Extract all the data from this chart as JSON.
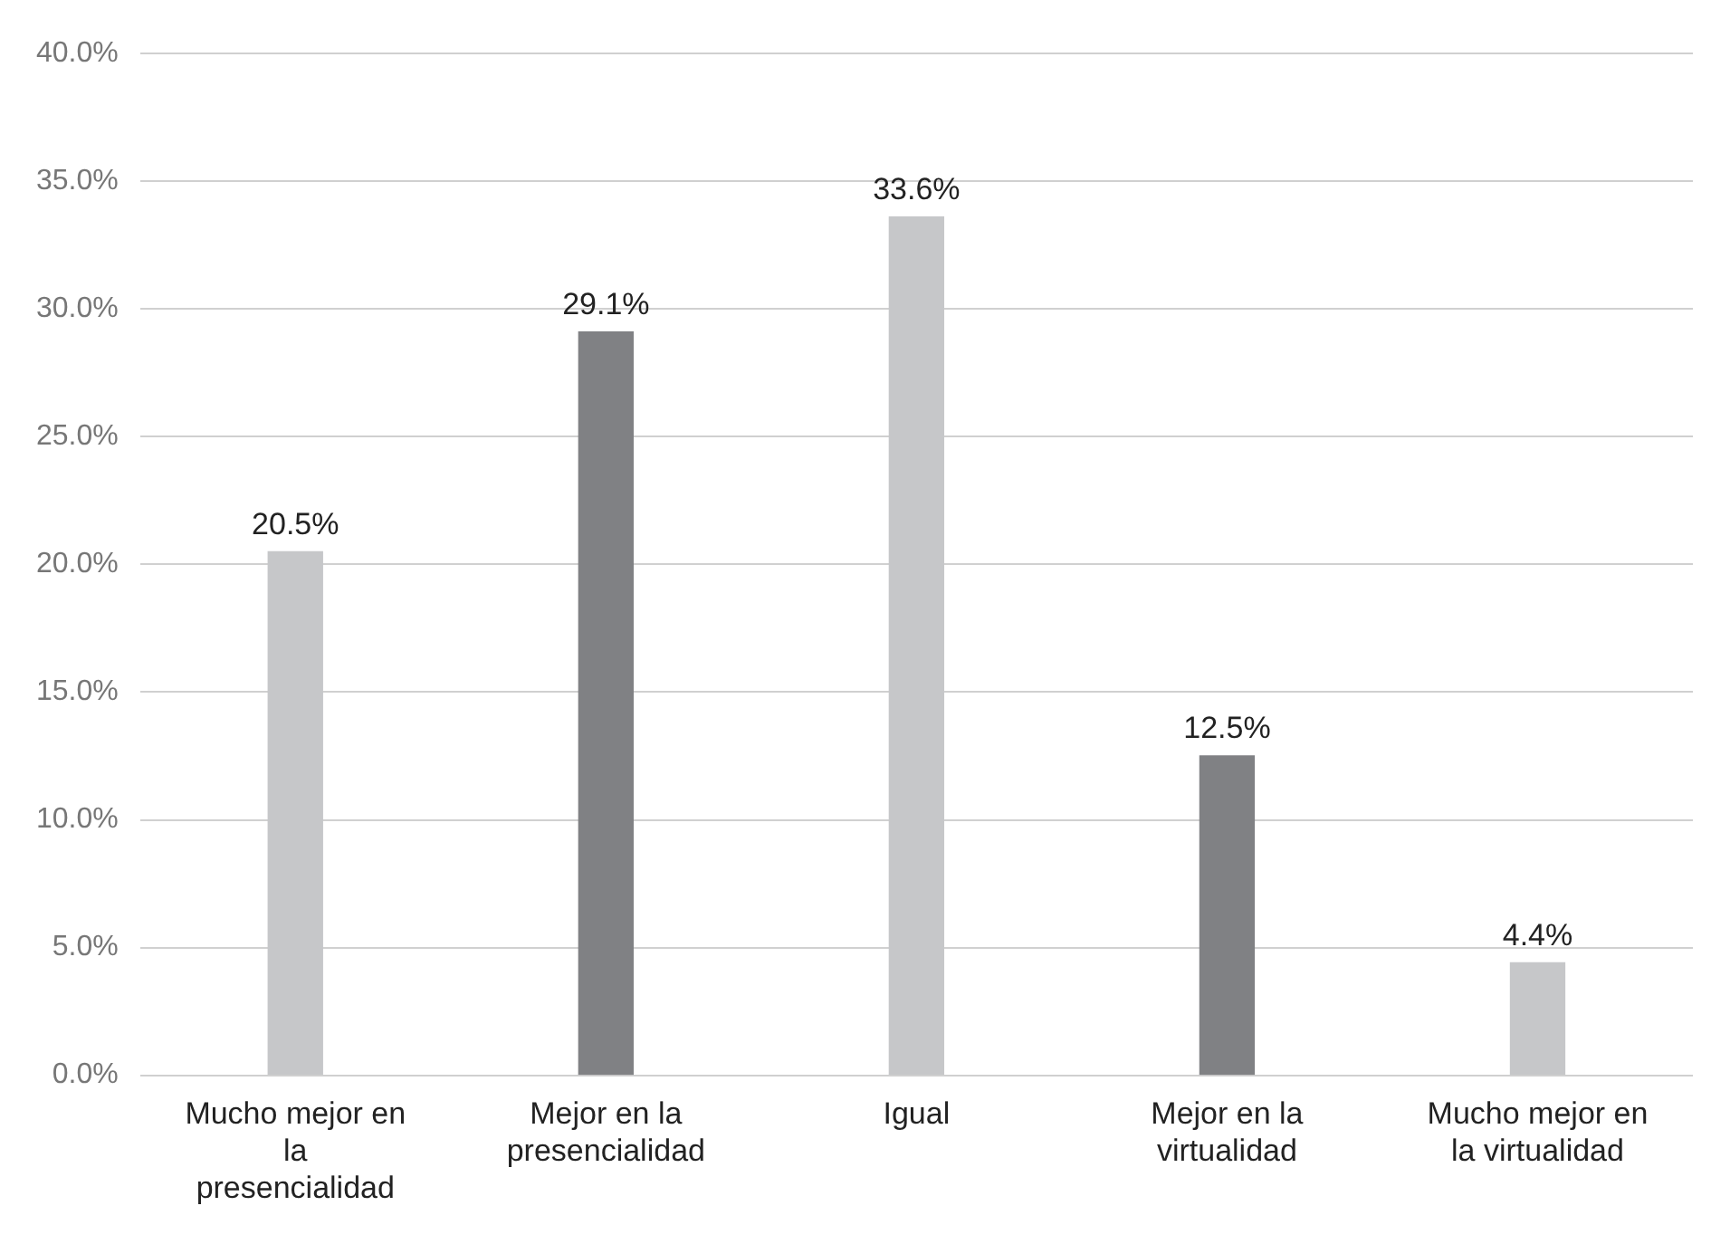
{
  "chart_data": {
    "type": "bar",
    "categories": [
      "Mucho mejor en la presencialidad",
      "Mejor en la presencialidad",
      "Igual",
      "Mejor en la virtualidad",
      "Mucho mejor en la virtualidad"
    ],
    "values": [
      20.5,
      29.1,
      33.6,
      12.5,
      4.4
    ],
    "colors": [
      "#c6c7c9",
      "#808184",
      "#c6c7c9",
      "#808184",
      "#c6c7c9"
    ],
    "ylim": [
      0,
      40
    ],
    "yticks": [
      {
        "value": 0,
        "label": "0.0%"
      },
      {
        "value": 5,
        "label": "5.0%"
      },
      {
        "value": 10,
        "label": "10.0%"
      },
      {
        "value": 15,
        "label": "15.0%"
      },
      {
        "value": 20,
        "label": "20.0%"
      },
      {
        "value": 25,
        "label": "25.0%"
      },
      {
        "value": 30,
        "label": "30.0%"
      },
      {
        "value": 35,
        "label": "35.0%"
      },
      {
        "value": 40,
        "label": "40.0%"
      }
    ],
    "value_labels": [
      "20.5%",
      "29.1%",
      "33.6%",
      "12.5%",
      "4.4%"
    ],
    "grid": "y",
    "legend": false
  }
}
